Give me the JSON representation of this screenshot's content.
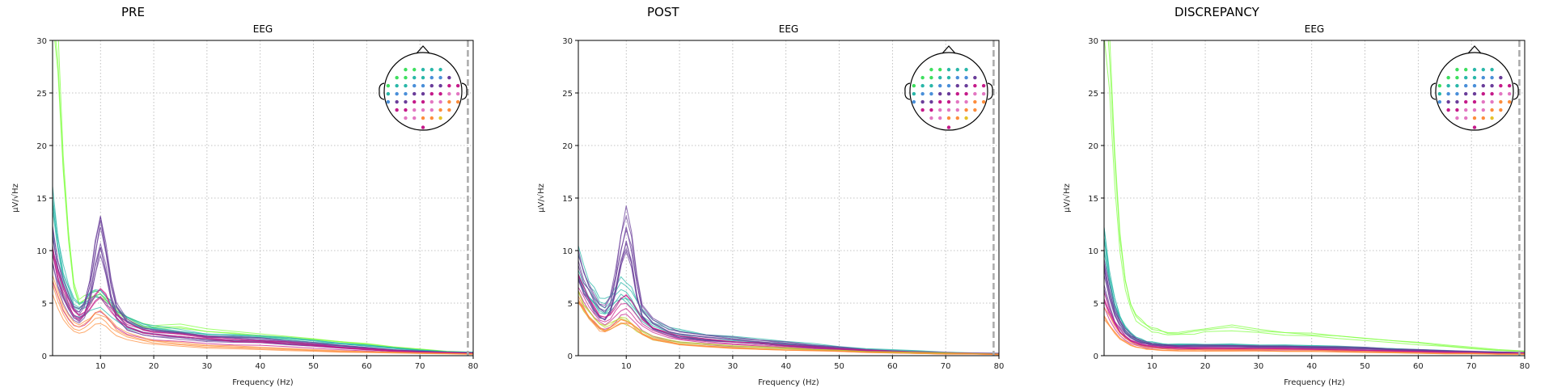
{
  "chart_data": [
    {
      "type": "line",
      "title": "PRE",
      "subtitle": "EEG",
      "xlabel": "Frequency (Hz)",
      "ylabel": "µV/√Hz",
      "xlim": [
        1,
        80
      ],
      "ylim": [
        0,
        30
      ],
      "xticks": [
        10,
        20,
        30,
        40,
        50,
        60,
        70,
        80
      ],
      "yticks": [
        0,
        5,
        10,
        15,
        20,
        25,
        30
      ],
      "grid": true,
      "marker_line_x": 79,
      "groups": [
        {
          "name": "",
          "color": "#7fff3f",
          "count": 3,
          "x": [
            1,
            2,
            3,
            4,
            5,
            6,
            7,
            8,
            9,
            10,
            11,
            12,
            13,
            15,
            18,
            20,
            25,
            30,
            35,
            40,
            45,
            50,
            55,
            60,
            65,
            70,
            75,
            80
          ],
          "y": [
            32,
            28,
            18,
            11,
            6.5,
            5,
            5.2,
            5.5,
            5.8,
            5.6,
            5.2,
            4.8,
            4.2,
            3.5,
            2.8,
            2.6,
            2.7,
            2.3,
            2.1,
            1.9,
            1.7,
            1.5,
            1.3,
            1.1,
            0.8,
            0.6,
            0.4,
            0.3
          ]
        },
        {
          "name": "",
          "color": "#2ab7a9",
          "count": 6,
          "x": [
            1,
            2,
            3,
            4,
            5,
            6,
            7,
            8,
            9,
            10,
            11,
            12,
            13,
            15,
            18,
            20,
            25,
            30,
            35,
            40,
            45,
            50,
            55,
            60,
            65,
            70,
            75,
            80
          ],
          "y": [
            14,
            10,
            7.5,
            6,
            4.8,
            4.5,
            4.8,
            5.2,
            5.6,
            5.5,
            5.1,
            4.6,
            4,
            3.3,
            2.7,
            2.5,
            2.2,
            1.9,
            1.8,
            1.7,
            1.5,
            1.3,
            1.1,
            0.9,
            0.7,
            0.5,
            0.35,
            0.3
          ]
        },
        {
          "name": "",
          "color": "#6a3d9a",
          "count": 8,
          "x": [
            1,
            2,
            3,
            4,
            5,
            6,
            7,
            8,
            9,
            10,
            11,
            12,
            13,
            15,
            18,
            20,
            25,
            30,
            35,
            40,
            45,
            50,
            55,
            60,
            65,
            70,
            75,
            80
          ],
          "y": [
            11,
            8,
            6.3,
            5.2,
            4.2,
            3.9,
            4.5,
            6.5,
            9.5,
            12,
            9.5,
            6.5,
            4.5,
            3,
            2.4,
            2.2,
            2,
            1.7,
            1.6,
            1.5,
            1.3,
            1.1,
            0.9,
            0.7,
            0.5,
            0.4,
            0.3,
            0.25
          ]
        },
        {
          "name": "",
          "color": "#c51b8a",
          "count": 5,
          "x": [
            1,
            2,
            3,
            4,
            5,
            6,
            7,
            8,
            9,
            10,
            11,
            12,
            13,
            15,
            18,
            20,
            25,
            30,
            35,
            40,
            45,
            50,
            55,
            60,
            65,
            70,
            75,
            80
          ],
          "y": [
            9,
            7,
            5.5,
            4.4,
            3.6,
            3.3,
            3.6,
            4.2,
            5,
            5.3,
            4.8,
            4.1,
            3.4,
            2.6,
            2.1,
            1.9,
            1.7,
            1.5,
            1.3,
            1.2,
            1.1,
            0.9,
            0.7,
            0.55,
            0.4,
            0.3,
            0.25,
            0.2
          ]
        },
        {
          "name": "",
          "color": "#fd8d3c",
          "count": 4,
          "x": [
            1,
            2,
            3,
            4,
            5,
            6,
            7,
            8,
            9,
            10,
            11,
            12,
            13,
            15,
            18,
            20,
            25,
            30,
            35,
            40,
            45,
            50,
            55,
            60,
            65,
            70,
            75,
            80
          ],
          "y": [
            7,
            5.5,
            4.3,
            3.4,
            2.8,
            2.6,
            2.8,
            3.2,
            3.7,
            3.8,
            3.4,
            2.9,
            2.4,
            1.9,
            1.5,
            1.3,
            1.1,
            0.9,
            0.8,
            0.7,
            0.6,
            0.5,
            0.4,
            0.35,
            0.3,
            0.25,
            0.2,
            0.15
          ]
        }
      ]
    },
    {
      "type": "line",
      "title": "POST",
      "subtitle": "EEG",
      "xlabel": "Frequency (Hz)",
      "ylabel": "µV/√Hz",
      "xlim": [
        1,
        80
      ],
      "ylim": [
        0,
        30
      ],
      "xticks": [
        10,
        20,
        30,
        40,
        50,
        60,
        70,
        80
      ],
      "yticks": [
        0,
        5,
        10,
        15,
        20,
        25,
        30
      ],
      "grid": true,
      "marker_line_x": 79,
      "groups": [
        {
          "name": "",
          "color": "#2ab7a9",
          "count": 6,
          "x": [
            1,
            2,
            3,
            4,
            5,
            6,
            7,
            8,
            9,
            10,
            11,
            12,
            13,
            15,
            18,
            20,
            25,
            30,
            35,
            40,
            45,
            50,
            55,
            60,
            65,
            70,
            75,
            80
          ],
          "y": [
            9,
            7.5,
            6.5,
            5.8,
            5,
            4.8,
            5.2,
            6,
            6.5,
            6.3,
            5.6,
            4.8,
            4,
            3.1,
            2.5,
            2.2,
            1.8,
            1.6,
            1.4,
            1.2,
            1,
            0.8,
            0.6,
            0.5,
            0.4,
            0.3,
            0.25,
            0.2
          ]
        },
        {
          "name": "",
          "color": "#6a3d9a",
          "count": 8,
          "x": [
            1,
            2,
            3,
            4,
            5,
            6,
            7,
            8,
            9,
            10,
            11,
            12,
            13,
            15,
            18,
            20,
            25,
            30,
            35,
            40,
            45,
            50,
            55,
            60,
            65,
            70,
            75,
            80
          ],
          "y": [
            8.5,
            7,
            6,
            5,
            4.3,
            4,
            4.8,
            7,
            10,
            12,
            10,
            6.5,
            4.3,
            3,
            2.3,
            2,
            1.7,
            1.5,
            1.3,
            1.1,
            0.9,
            0.7,
            0.5,
            0.4,
            0.3,
            0.25,
            0.2,
            0.2
          ]
        },
        {
          "name": "",
          "color": "#c51b8a",
          "count": 5,
          "x": [
            1,
            2,
            3,
            4,
            5,
            6,
            7,
            8,
            9,
            10,
            11,
            12,
            13,
            15,
            18,
            20,
            25,
            30,
            35,
            40,
            45,
            50,
            55,
            60,
            65,
            70,
            75,
            80
          ],
          "y": [
            6.5,
            5.5,
            4.6,
            3.9,
            3.3,
            3.1,
            3.4,
            4,
            4.6,
            4.8,
            4.3,
            3.6,
            3,
            2.3,
            1.8,
            1.6,
            1.3,
            1.1,
            1,
            0.85,
            0.7,
            0.55,
            0.45,
            0.35,
            0.3,
            0.25,
            0.2,
            0.15
          ]
        },
        {
          "name": "",
          "color": "#b8d430",
          "count": 3,
          "x": [
            1,
            2,
            3,
            4,
            5,
            6,
            7,
            8,
            9,
            10,
            11,
            12,
            13,
            15,
            18,
            20,
            25,
            30,
            35,
            40,
            45,
            50,
            55,
            60,
            65,
            70,
            75,
            80
          ],
          "y": [
            6,
            5,
            4.2,
            3.6,
            3,
            2.8,
            3,
            3.4,
            3.6,
            3.5,
            3.1,
            2.7,
            2.3,
            1.8,
            1.5,
            1.3,
            1.1,
            0.95,
            0.85,
            0.75,
            0.6,
            0.5,
            0.4,
            0.35,
            0.3,
            0.25,
            0.2,
            0.15
          ]
        },
        {
          "name": "",
          "color": "#fd8d3c",
          "count": 4,
          "x": [
            1,
            2,
            3,
            4,
            5,
            6,
            7,
            8,
            9,
            10,
            11,
            12,
            13,
            15,
            18,
            20,
            25,
            30,
            35,
            40,
            45,
            50,
            55,
            60,
            65,
            70,
            75,
            80
          ],
          "y": [
            5,
            4.2,
            3.5,
            2.9,
            2.4,
            2.2,
            2.4,
            2.8,
            3.1,
            3.1,
            2.8,
            2.4,
            2,
            1.5,
            1.2,
            1,
            0.85,
            0.7,
            0.6,
            0.5,
            0.45,
            0.4,
            0.3,
            0.25,
            0.2,
            0.15,
            0.15,
            0.1
          ]
        }
      ]
    },
    {
      "type": "line",
      "title": "DISCREPANCY",
      "subtitle": "EEG",
      "xlabel": "Frequency (Hz)",
      "ylabel": "µV/√Hz",
      "xlim": [
        1,
        80
      ],
      "ylim": [
        0,
        30
      ],
      "xticks": [
        10,
        20,
        30,
        40,
        50,
        60,
        70,
        80
      ],
      "yticks": [
        0,
        5,
        10,
        15,
        20,
        25,
        30
      ],
      "grid": true,
      "marker_line_x": 79,
      "groups": [
        {
          "name": "",
          "color": "#7fff3f",
          "count": 3,
          "x": [
            1,
            2,
            3,
            4,
            5,
            6,
            7,
            8,
            9,
            10,
            11,
            12,
            13,
            15,
            18,
            20,
            25,
            30,
            35,
            40,
            45,
            50,
            55,
            60,
            65,
            70,
            75,
            80
          ],
          "y": [
            32,
            27,
            17,
            10,
            6.5,
            4.5,
            3.5,
            3,
            2.6,
            2.4,
            2.2,
            2.1,
            2,
            2,
            2.1,
            2.3,
            2.5,
            2.2,
            2,
            1.9,
            1.7,
            1.5,
            1.3,
            1.1,
            0.9,
            0.7,
            0.5,
            0.4
          ]
        },
        {
          "name": "",
          "color": "#2ab7a9",
          "count": 6,
          "x": [
            1,
            2,
            3,
            4,
            5,
            6,
            7,
            8,
            9,
            10,
            11,
            12,
            13,
            15,
            18,
            20,
            25,
            30,
            35,
            40,
            45,
            50,
            55,
            60,
            65,
            70,
            75,
            80
          ],
          "y": [
            12,
            8,
            5.5,
            3.8,
            2.8,
            2.2,
            1.8,
            1.6,
            1.4,
            1.3,
            1.2,
            1.15,
            1.1,
            1.1,
            1.1,
            1.1,
            1.1,
            1,
            1,
            0.95,
            0.9,
            0.8,
            0.7,
            0.6,
            0.5,
            0.4,
            0.35,
            0.3
          ]
        },
        {
          "name": "",
          "color": "#6a3d9a",
          "count": 8,
          "x": [
            1,
            2,
            3,
            4,
            5,
            6,
            7,
            8,
            9,
            10,
            11,
            12,
            13,
            15,
            18,
            20,
            25,
            30,
            35,
            40,
            45,
            50,
            55,
            60,
            65,
            70,
            75,
            80
          ],
          "y": [
            8,
            5.5,
            3.8,
            2.8,
            2.1,
            1.7,
            1.4,
            1.2,
            1.1,
            1,
            0.95,
            0.9,
            0.9,
            0.85,
            0.85,
            0.85,
            0.85,
            0.8,
            0.8,
            0.75,
            0.7,
            0.65,
            0.55,
            0.5,
            0.4,
            0.35,
            0.3,
            0.25
          ]
        },
        {
          "name": "",
          "color": "#c51b8a",
          "count": 5,
          "x": [
            1,
            2,
            3,
            4,
            5,
            6,
            7,
            8,
            9,
            10,
            11,
            12,
            13,
            15,
            18,
            20,
            25,
            30,
            35,
            40,
            45,
            50,
            55,
            60,
            65,
            70,
            75,
            80
          ],
          "y": [
            5,
            3.8,
            2.8,
            2.1,
            1.6,
            1.3,
            1.1,
            0.95,
            0.85,
            0.8,
            0.75,
            0.7,
            0.7,
            0.65,
            0.65,
            0.65,
            0.6,
            0.6,
            0.6,
            0.55,
            0.5,
            0.45,
            0.4,
            0.35,
            0.3,
            0.25,
            0.2,
            0.2
          ]
        },
        {
          "name": "",
          "color": "#fd8d3c",
          "count": 4,
          "x": [
            1,
            2,
            3,
            4,
            5,
            6,
            7,
            8,
            9,
            10,
            11,
            12,
            13,
            15,
            18,
            20,
            25,
            30,
            35,
            40,
            45,
            50,
            55,
            60,
            65,
            70,
            75,
            80
          ],
          "y": [
            4,
            3.2,
            2.4,
            1.8,
            1.4,
            1.1,
            0.9,
            0.8,
            0.7,
            0.65,
            0.6,
            0.55,
            0.55,
            0.5,
            0.5,
            0.5,
            0.5,
            0.5,
            0.45,
            0.45,
            0.4,
            0.35,
            0.3,
            0.25,
            0.2,
            0.2,
            0.15,
            0.15
          ]
        }
      ]
    }
  ],
  "sensor_colors": [
    "#7fff3f",
    "#3fdf5f",
    "#2ab7a9",
    "#4a8fd9",
    "#6a3d9a",
    "#c51b8a",
    "#e377c2",
    "#fd8d3c",
    "#e6c229",
    "#b8d430"
  ]
}
